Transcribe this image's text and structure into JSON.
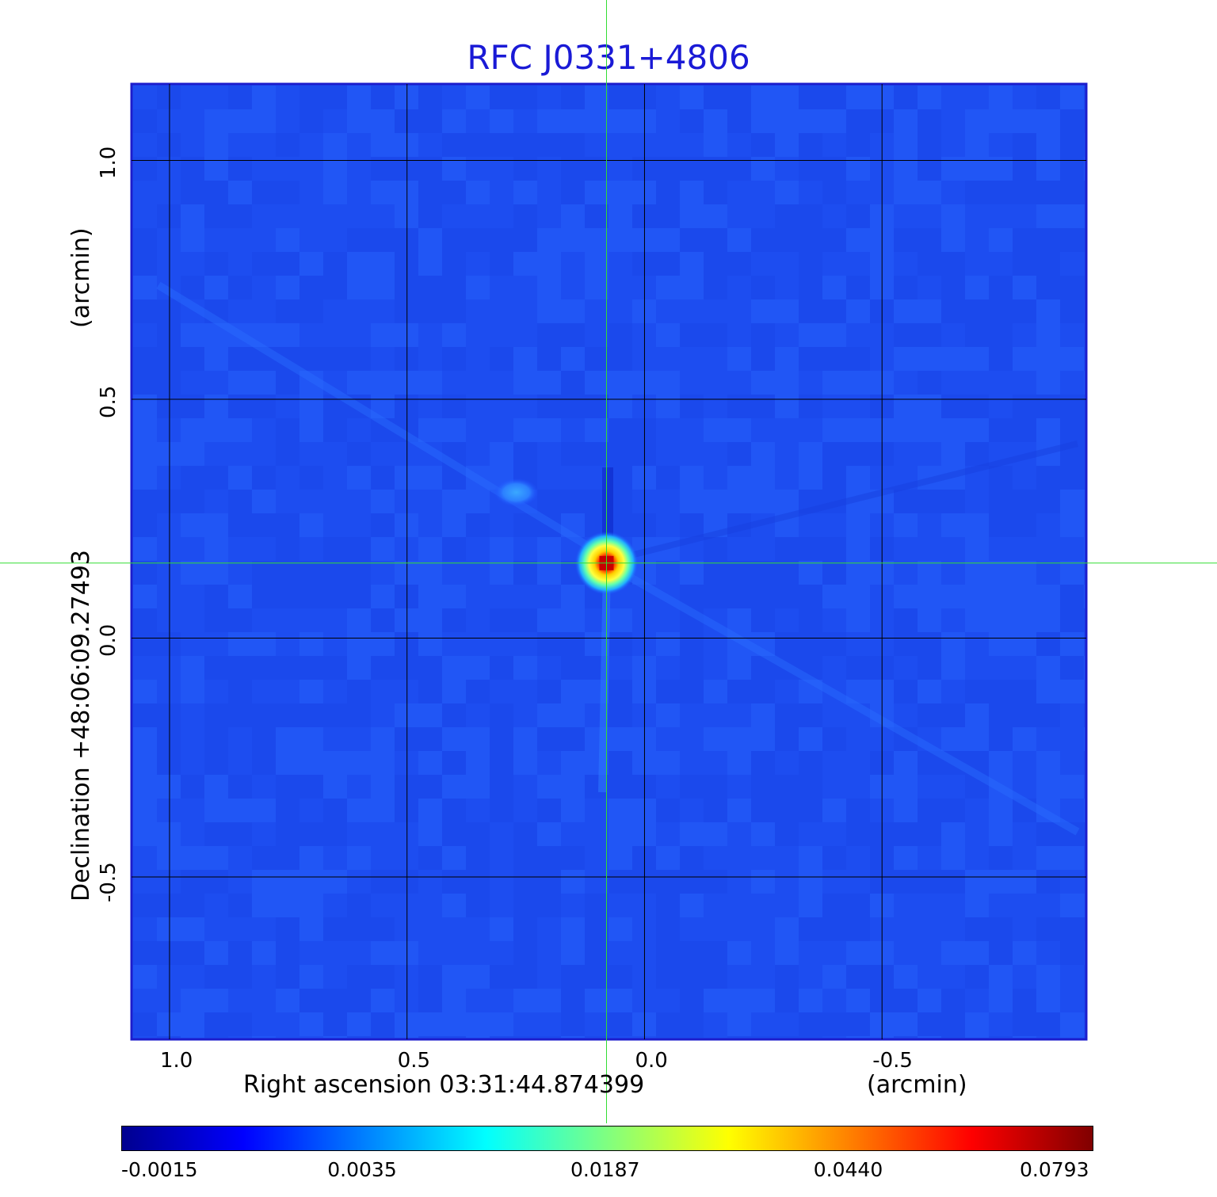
{
  "title": "RFC J0331+4806",
  "x_axis": {
    "label": "Right ascension  03:31:44.874399",
    "unit": "(arcmin)",
    "ticks": [
      {
        "label": "1.0",
        "value": 1.0
      },
      {
        "label": "0.5",
        "value": 0.5
      },
      {
        "label": "0.0",
        "value": 0.0
      },
      {
        "label": "-0.5",
        "value": -0.5
      }
    ],
    "range": [
      1.08,
      -0.93
    ]
  },
  "y_axis": {
    "label": "Declination  +48:06:09.27493",
    "unit": "(arcmin)",
    "ticks": [
      {
        "label": "1.0",
        "value": 1.0
      },
      {
        "label": "0.5",
        "value": 0.5
      },
      {
        "label": "0.0",
        "value": 0.0
      },
      {
        "label": "-0.5",
        "value": -0.5
      }
    ],
    "range": [
      -0.84,
      1.16
    ]
  },
  "grid": true,
  "crosshair": {
    "ra_offset": 0.08,
    "dec_offset": 0.157,
    "color": "#33dd33"
  },
  "colorbar": {
    "ticks": [
      "-0.0015",
      "0.0035",
      "0.0187",
      "0.0440",
      "0.0793"
    ],
    "colormap": [
      "#00008f",
      "#0000ff",
      "#0080ff",
      "#00ffff",
      "#80ff80",
      "#ffff00",
      "#ff8000",
      "#ff0000",
      "#800000"
    ]
  },
  "source": {
    "ra_offset": 0.08,
    "dec_offset": 0.157,
    "peak": 0.0793
  },
  "secondary_feature": {
    "ra_offset": 0.27,
    "dec_offset": 0.305
  }
}
